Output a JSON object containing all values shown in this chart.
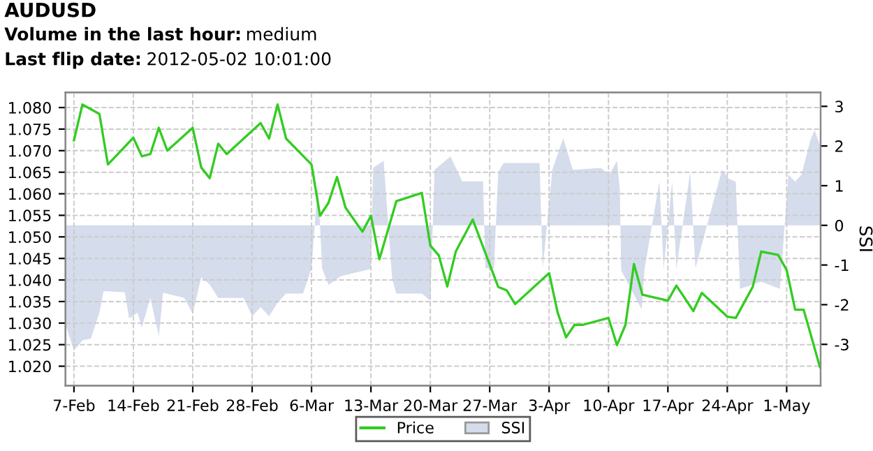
{
  "chart_data": {
    "type": "line",
    "title": "AUDUSD",
    "subtitle": "Volume in the last hour: medium\nLast flip date: 2012-05-02 10:01:00",
    "y2label": "SSI",
    "xlim": [
      "2012-02-06",
      "2012-05-05"
    ],
    "xticks": [
      {
        "value": "2012-02-07",
        "label": "7-Feb"
      },
      {
        "value": "2012-02-14",
        "label": "14-Feb"
      },
      {
        "value": "2012-02-21",
        "label": "21-Feb"
      },
      {
        "value": "2012-02-28",
        "label": "28-Feb"
      },
      {
        "value": "2012-03-06",
        "label": "6-Mar"
      },
      {
        "value": "2012-03-13",
        "label": "13-Mar"
      },
      {
        "value": "2012-03-20",
        "label": "20-Mar"
      },
      {
        "value": "2012-03-27",
        "label": "27-Mar"
      },
      {
        "value": "2012-04-03",
        "label": "3-Apr"
      },
      {
        "value": "2012-04-10",
        "label": "10-Apr"
      },
      {
        "value": "2012-04-17",
        "label": "17-Apr"
      },
      {
        "value": "2012-04-24",
        "label": "24-Apr"
      },
      {
        "value": "2012-05-01",
        "label": "1-May"
      }
    ],
    "ylim": [
      1.0155,
      1.0835
    ],
    "yticks": [
      {
        "value": 1.02,
        "label": "1.020"
      },
      {
        "value": 1.025,
        "label": "1.025"
      },
      {
        "value": 1.03,
        "label": "1.030"
      },
      {
        "value": 1.035,
        "label": "1.035"
      },
      {
        "value": 1.04,
        "label": "1.040"
      },
      {
        "value": 1.045,
        "label": "1.045"
      },
      {
        "value": 1.05,
        "label": "1.050"
      },
      {
        "value": 1.055,
        "label": "1.055"
      },
      {
        "value": 1.06,
        "label": "1.060"
      },
      {
        "value": 1.065,
        "label": "1.065"
      },
      {
        "value": 1.07,
        "label": "1.070"
      },
      {
        "value": 1.075,
        "label": "1.075"
      },
      {
        "value": 1.08,
        "label": "1.080"
      }
    ],
    "y2lim": [
      -4.04,
      3.35
    ],
    "y2ticks": [
      -3,
      -2,
      -1,
      0,
      1,
      2,
      3
    ],
    "grid": true,
    "legend": "bottom",
    "line_style": "solid",
    "series": [
      {
        "name": "Price",
        "color": "#33cc22",
        "x": [
          "2012-02-07",
          "2012-02-08",
          "2012-02-10",
          "2012-02-11",
          "2012-02-14",
          "2012-02-15",
          "2012-02-16",
          "2012-02-17",
          "2012-02-18",
          "2012-02-21",
          "2012-02-22",
          "2012-02-23",
          "2012-02-24",
          "2012-02-25",
          "2012-02-29",
          "2012-03-01",
          "2012-03-02",
          "2012-03-03",
          "2012-03-06",
          "2012-03-07",
          "2012-03-08",
          "2012-03-09",
          "2012-03-10",
          "2012-03-12",
          "2012-03-13",
          "2012-03-14",
          "2012-03-16",
          "2012-03-19",
          "2012-03-20",
          "2012-03-21",
          "2012-03-22",
          "2012-03-23",
          "2012-03-25",
          "2012-03-28",
          "2012-03-29",
          "2012-03-30",
          "2012-04-03",
          "2012-04-04",
          "2012-04-05",
          "2012-04-06",
          "2012-04-07",
          "2012-04-10",
          "2012-04-11",
          "2012-04-12",
          "2012-04-13",
          "2012-04-14",
          "2012-04-17",
          "2012-04-18",
          "2012-04-20",
          "2012-04-21",
          "2012-04-24",
          "2012-04-25",
          "2012-04-27",
          "2012-04-28",
          "2012-04-30",
          "2012-05-01",
          "2012-05-02",
          "2012-05-03",
          "2012-05-04",
          "2012-05-04T22:00"
        ],
        "values": [
          1.0724,
          1.0807,
          1.0785,
          1.0668,
          1.073,
          1.0687,
          1.0692,
          1.0753,
          1.07,
          1.0753,
          1.0661,
          1.0636,
          1.0716,
          1.0692,
          1.0764,
          1.0728,
          1.0807,
          1.0728,
          1.0668,
          1.0549,
          1.0579,
          1.0639,
          1.0568,
          1.0512,
          1.0549,
          1.0448,
          1.0583,
          1.0602,
          1.048,
          1.0457,
          1.0385,
          1.0466,
          1.054,
          1.0384,
          1.0376,
          1.0344,
          1.0416,
          1.0325,
          1.0267,
          1.0296,
          1.0296,
          1.0312,
          1.0249,
          1.0296,
          1.0437,
          1.0366,
          1.0352,
          1.0387,
          1.0328,
          1.037,
          1.0315,
          1.0312,
          1.0384,
          1.0466,
          1.0458,
          1.0423,
          1.0331,
          1.0331,
          1.0262,
          1.0198
        ]
      },
      {
        "name": "SSI",
        "type": "area",
        "axis": "y2",
        "color": "#d5dcec",
        "x": [
          "2012-02-06",
          "2012-02-07",
          "2012-02-08",
          "2012-02-09",
          "2012-02-10",
          "2012-02-10T12:00",
          "2012-02-13",
          "2012-02-13T12:00",
          "2012-02-14T12:00",
          "2012-02-15",
          "2012-02-16",
          "2012-02-17",
          "2012-02-17T12:00",
          "2012-02-20",
          "2012-02-21",
          "2012-02-22",
          "2012-02-23",
          "2012-02-24",
          "2012-02-27",
          "2012-02-28",
          "2012-02-29",
          "2012-03-01",
          "2012-03-02",
          "2012-03-03",
          "2012-03-05",
          "2012-03-06",
          "2012-03-06T18:00",
          "2012-03-07T06:00",
          "2012-03-08",
          "2012-03-09T12:00",
          "2012-03-13",
          "2012-03-13T06:00",
          "2012-03-14T12:00",
          "2012-03-15T12:00",
          "2012-03-16",
          "2012-03-19",
          "2012-03-20",
          "2012-03-20T12:00",
          "2012-03-22T09:00",
          "2012-03-23T18:00",
          "2012-03-26T05:00",
          "2012-03-26T12:00",
          "2012-03-27T12:00",
          "2012-03-28",
          "2012-03-28T15:00",
          "2012-04-01T21:00",
          "2012-04-02T06:00",
          "2012-04-03T09:00",
          "2012-04-04T16:00",
          "2012-04-05T19:00",
          "2012-04-09T02:00",
          "2012-04-10T03:00",
          "2012-04-11",
          "2012-04-11T08:00",
          "2012-04-11T12:00",
          "2012-04-13T22:00",
          "2012-04-14T06:00",
          "2012-04-16",
          "2012-04-16T12:00",
          "2012-04-17T12:00",
          "2012-04-18",
          "2012-04-19T15:00",
          "2012-04-20T06:00",
          "2012-04-23T09:00",
          "2012-04-24T05:00",
          "2012-04-25",
          "2012-04-25T12:00",
          "2012-04-28",
          "2012-04-30T05:00",
          "2012-05-01T05:00",
          "2012-05-02",
          "2012-05-02T18:00",
          "2012-05-03T19:00",
          "2012-05-04T07:00",
          "2012-05-04T23:00"
        ],
        "values": [
          -2.5,
          -3.16,
          -2.9,
          -2.85,
          -2.2,
          -1.66,
          -1.69,
          -2.35,
          -2.2,
          -2.58,
          -1.83,
          -2.8,
          -1.7,
          -1.83,
          -2.23,
          -1.31,
          -1.49,
          -1.83,
          -1.83,
          -2.29,
          -2.06,
          -2.29,
          -1.95,
          -1.72,
          -1.72,
          -1.08,
          1.07,
          -1.08,
          -1.5,
          -1.28,
          -1.1,
          1.45,
          1.63,
          -1.35,
          -1.72,
          -1.72,
          -1.9,
          1.4,
          1.74,
          1.11,
          1.11,
          -1.08,
          -1.08,
          1.34,
          1.57,
          1.57,
          -1.08,
          1.4,
          2.2,
          1.4,
          1.45,
          1.28,
          1.63,
          0.9,
          -1.14,
          -2.12,
          -1.1,
          1.11,
          -1.1,
          1.11,
          -1.1,
          1.34,
          -1.08,
          1.4,
          1.17,
          1.1,
          -1.6,
          -1.42,
          -1.6,
          1.28,
          1.1,
          1.28,
          2.15,
          2.4,
          2.0
        ]
      }
    ]
  }
}
